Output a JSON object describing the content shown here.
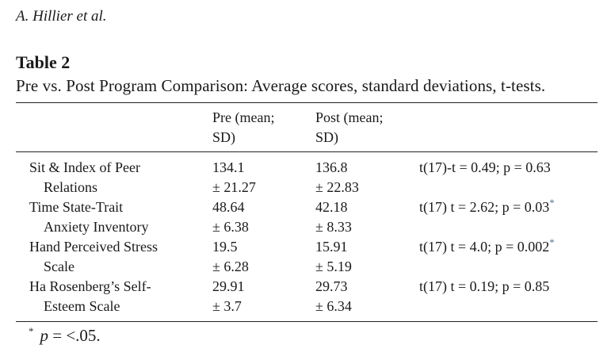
{
  "running_head": "A. Hillier et al.",
  "table": {
    "label": "Table 2",
    "caption": "Pre vs. Post Program Comparison: Average scores, standard deviations, t-tests.",
    "headers": {
      "pre_line1": "Pre (mean;",
      "pre_line2": "SD)",
      "post_line1": "Post (mean;",
      "post_line2": "SD)"
    },
    "rows": [
      {
        "measure_line1": "Sit & Index of Peer",
        "measure_line2": "Relations",
        "pre_mean": "134.1",
        "pre_sd": "± 21.27",
        "post_mean": "136.8",
        "post_sd": "± 22.83",
        "stat": "t(17)-t = 0.49; p = 0.63",
        "significant": ""
      },
      {
        "measure_line1": "Time State-Trait",
        "measure_line2": "Anxiety Inventory",
        "pre_mean": "48.64",
        "pre_sd": "± 6.38",
        "post_mean": "42.18",
        "post_sd": "± 8.33",
        "stat": "t(17) t = 2.62; p = 0.03",
        "significant": "*"
      },
      {
        "measure_line1": "Hand Perceived Stress",
        "measure_line2": "Scale",
        "pre_mean": "19.5",
        "pre_sd": "± 6.28",
        "post_mean": "15.91",
        "post_sd": "± 5.19",
        "stat": "t(17) t = 4.0; p = 0.002",
        "significant": "*"
      },
      {
        "measure_line1": "Ha Rosenberg’s Self-",
        "measure_line2": "Esteem Scale",
        "pre_mean": "29.91",
        "pre_sd": "± 3.7",
        "post_mean": "29.73",
        "post_sd": "± 6.34",
        "stat": "t(17) t = 0.19; p = 0.85",
        "significant": ""
      }
    ],
    "footnote": {
      "mark": "*",
      "p_symbol": "p",
      "text": " = <.05."
    }
  }
}
